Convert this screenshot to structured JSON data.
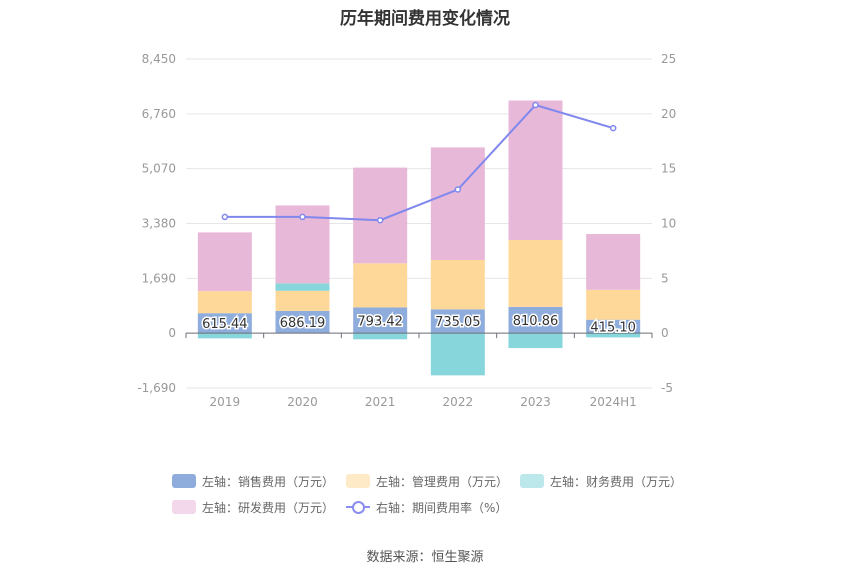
{
  "chart_data": {
    "type": "bar",
    "title": "历年期间费用变化情况",
    "categories": [
      "2019",
      "2020",
      "2021",
      "2022",
      "2023",
      "2024H1"
    ],
    "series": [
      {
        "name": "左轴：销售费用（万元）",
        "axis": "left",
        "kind": "stacked-bar",
        "color": "#8eacdc",
        "values": [
          615.44,
          686.19,
          793.42,
          735.05,
          810.86,
          415.1
        ],
        "labels": [
          "615.44",
          "686.19",
          "793.42",
          "735.05",
          "810.86",
          "415.10"
        ]
      },
      {
        "name": "左轴：管理费用（万元）",
        "axis": "left",
        "kind": "stacked-bar",
        "color": "#fed899",
        "values": [
          680,
          620,
          1360,
          1520,
          2060,
          920
        ]
      },
      {
        "name": "左轴：财务费用（万元）",
        "axis": "left",
        "kind": "stacked-bar",
        "color": "#86d6db",
        "values": [
          -160,
          230,
          -190,
          -1300,
          -460,
          -130
        ]
      },
      {
        "name": "左轴：研发费用（万元）",
        "axis": "left",
        "kind": "stacked-bar",
        "color": "#e8b8d9",
        "values": [
          1810,
          2400,
          2950,
          3470,
          4300,
          1720
        ]
      },
      {
        "name": "右轴：期间费用率（%）",
        "axis": "right",
        "kind": "line",
        "color": "#8088ee",
        "values": [
          10.6,
          10.6,
          10.3,
          13.1,
          20.8,
          18.7
        ]
      }
    ],
    "y_left": {
      "ticks": [
        8450,
        6760,
        5070,
        3380,
        1690,
        0,
        -1690
      ],
      "tick_labels": [
        "8,450",
        "6,760",
        "5,070",
        "3,380",
        "1,690",
        "0",
        "-1,690"
      ],
      "range": [
        -1690,
        8450
      ]
    },
    "y_right": {
      "ticks": [
        25,
        20,
        15,
        10,
        5,
        0,
        -5
      ],
      "tick_labels": [
        "25",
        "20",
        "15",
        "10",
        "5",
        "0",
        "-5"
      ],
      "range": [
        -5,
        25
      ]
    },
    "grid": true,
    "legend_position": "bottom",
    "source": "数据来源：恒生聚源"
  }
}
